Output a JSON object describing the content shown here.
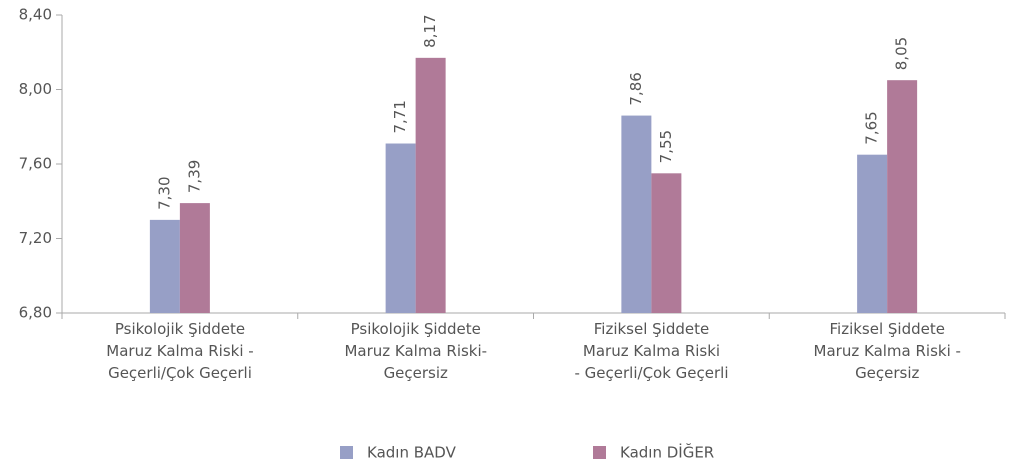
{
  "chart_data": {
    "type": "bar",
    "categories": [
      "Psikolojik Şiddete\nMaruz Kalma Riski -\nGeçerli/Çok Geçerli",
      "Psikolojik Şiddete\nMaruz Kalma Riski-\nGeçersiz",
      "Fiziksel Şiddete\nMaruz Kalma Riski\n- Geçerli/Çok Geçerli",
      "Fiziksel Şiddete\nMaruz Kalma Riski -\nGeçersiz"
    ],
    "series": [
      {
        "name": "Kadın BADV",
        "color": "#979fc6",
        "values": [
          7.3,
          7.71,
          7.86,
          7.65
        ],
        "value_labels": [
          "7,30",
          "7,71",
          "7,86",
          "7,65"
        ]
      },
      {
        "name": "Kadın DİĞER",
        "color": "#b07a98",
        "values": [
          7.39,
          8.17,
          7.55,
          8.05
        ],
        "value_labels": [
          "7,39",
          "8,17",
          "7,55",
          "8,05"
        ]
      }
    ],
    "ylim": [
      6.8,
      8.4
    ],
    "yticks": [
      {
        "value": 6.8,
        "label": "6,80"
      },
      {
        "value": 7.2,
        "label": "7,20"
      },
      {
        "value": 7.6,
        "label": "7,60"
      },
      {
        "value": 8.0,
        "label": "8,00"
      },
      {
        "value": 8.4,
        "label": "8,40"
      }
    ],
    "grid": false,
    "legend": "bottom"
  }
}
